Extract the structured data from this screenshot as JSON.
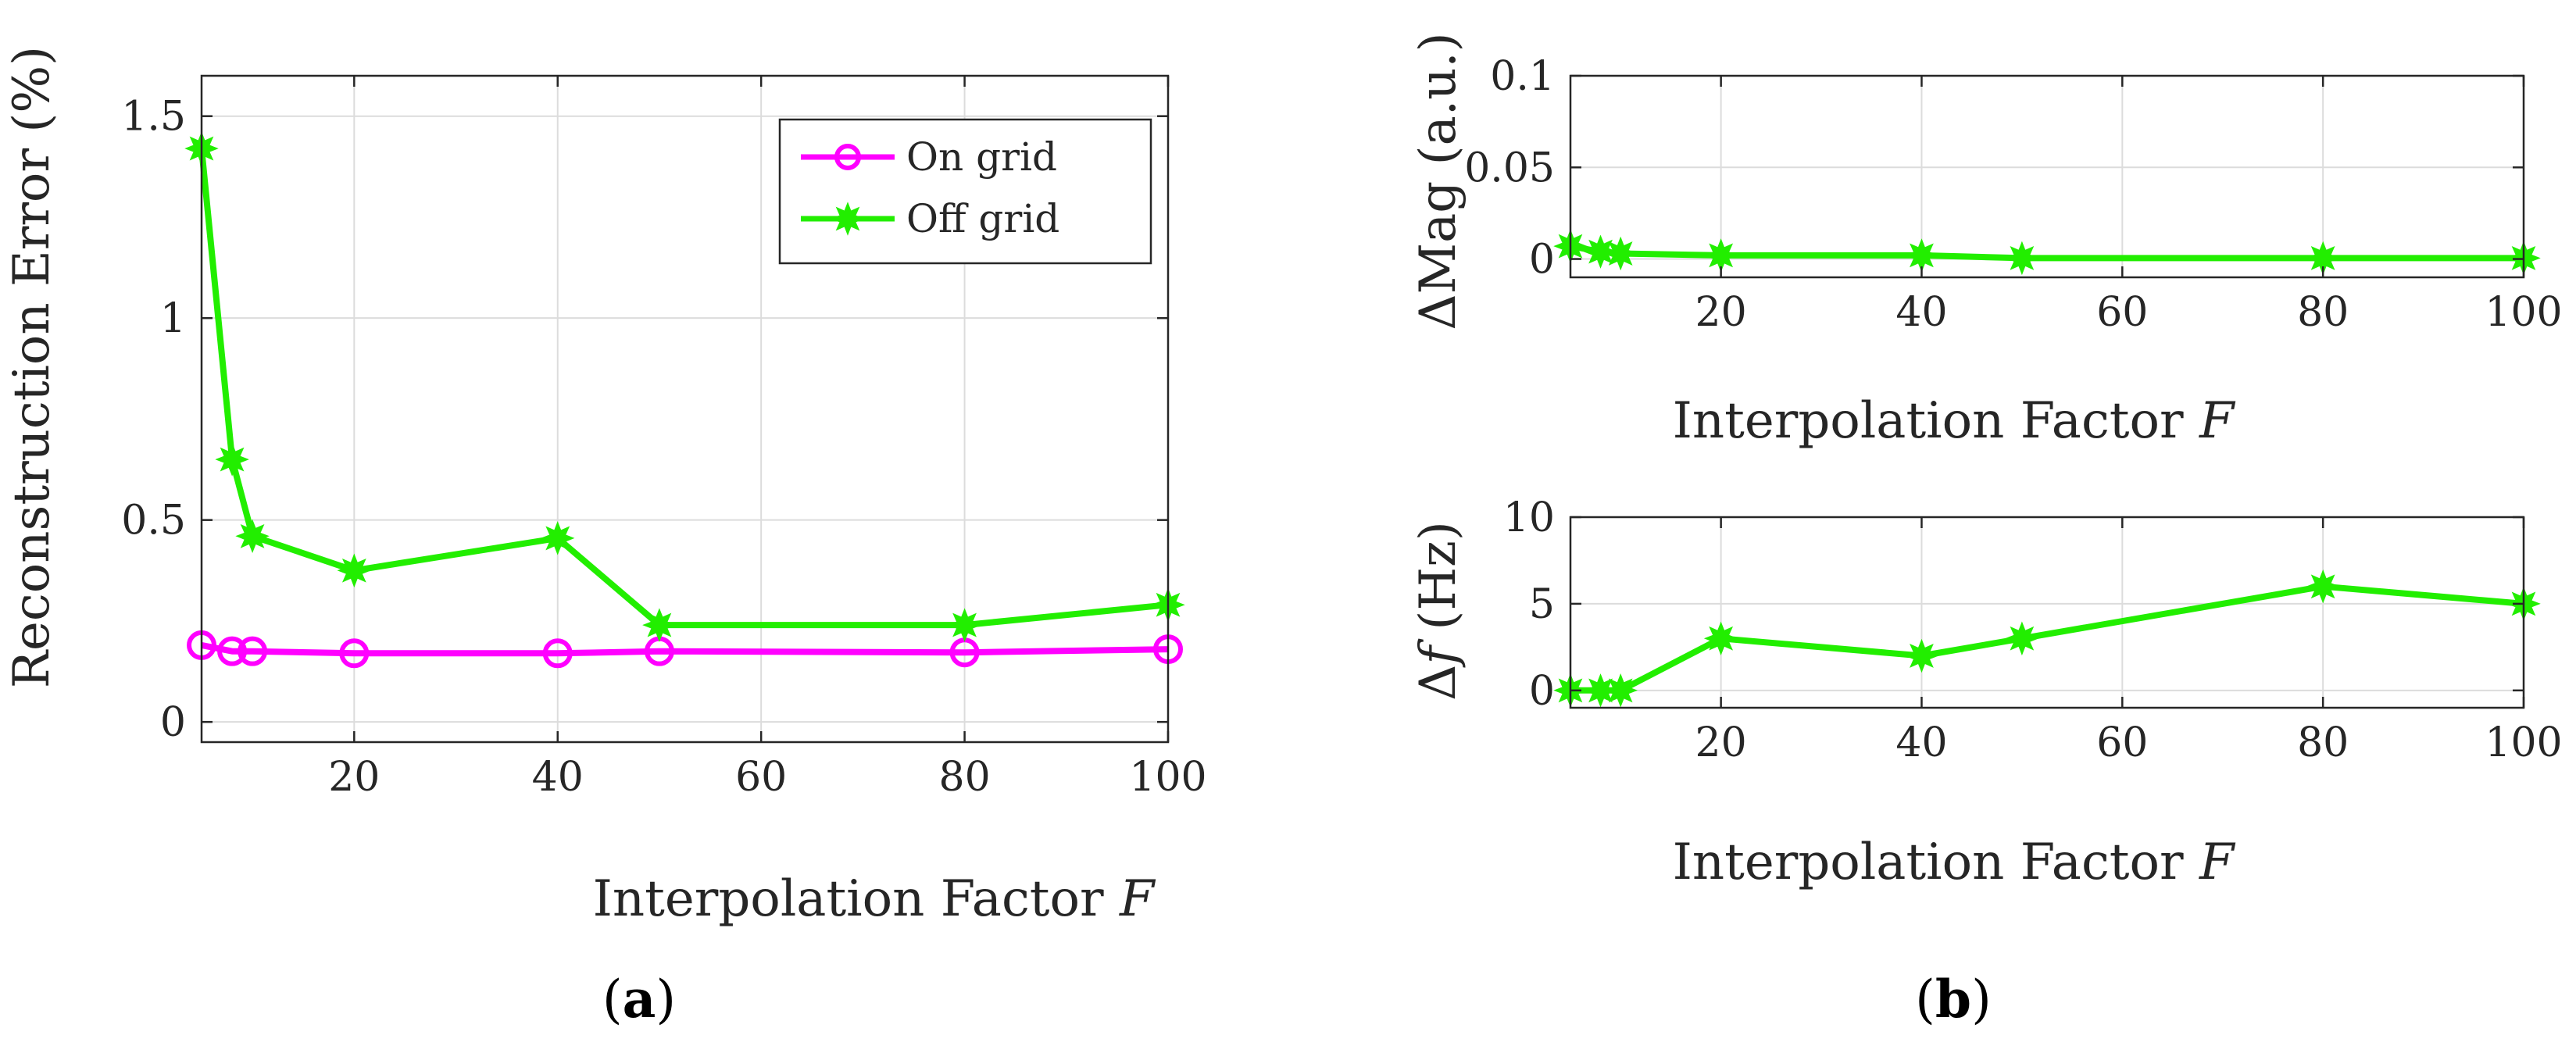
{
  "chart_data": [
    {
      "id": "a",
      "type": "line",
      "caption_letter": "a",
      "xlabel": "Interpolation Factor",
      "xlabel_var": "F",
      "ylabel": "Reconstruction Error (%)",
      "xlim": [
        5,
        100
      ],
      "ylim": [
        -0.05,
        1.6
      ],
      "xticks": [
        20,
        40,
        60,
        80,
        100
      ],
      "yticks": [
        0,
        0.5,
        1,
        1.5
      ],
      "ytick_labels": [
        "0",
        "0.5",
        "1",
        "1.5"
      ],
      "grid": true,
      "legend": "top-right",
      "series": [
        {
          "name": "On grid",
          "color": "#ff00ff",
          "marker": "circle",
          "x": [
            5,
            8,
            10,
            20,
            40,
            50,
            80,
            100
          ],
          "y": [
            0.19,
            0.175,
            0.175,
            0.17,
            0.17,
            0.175,
            0.172,
            0.18
          ]
        },
        {
          "name": "Off grid",
          "color": "#22ee00",
          "marker": "star",
          "x": [
            5,
            8,
            10,
            20,
            40,
            50,
            80,
            100
          ],
          "y": [
            1.42,
            0.65,
            0.46,
            0.375,
            0.455,
            0.24,
            0.24,
            0.29
          ]
        }
      ]
    },
    {
      "id": "b_top",
      "type": "line",
      "xlabel": "Interpolation Factor",
      "xlabel_var": "F",
      "ylabel_prefix": "ΔMag (a.u.)",
      "xlim": [
        5,
        100
      ],
      "ylim": [
        -0.01,
        0.1
      ],
      "xticks": [
        20,
        40,
        60,
        80,
        100
      ],
      "yticks": [
        0,
        0.05,
        0.1
      ],
      "ytick_labels": [
        "0",
        "0.05",
        "0.1"
      ],
      "grid": true,
      "series": [
        {
          "name": "Off grid",
          "color": "#22ee00",
          "marker": "star",
          "x": [
            5,
            8,
            10,
            20,
            40,
            50,
            80,
            100
          ],
          "y": [
            0.007,
            0.004,
            0.003,
            0.002,
            0.002,
            0.0005,
            0.0005,
            0.0005
          ]
        }
      ]
    },
    {
      "id": "b_bottom",
      "type": "line",
      "caption_letter": "b",
      "xlabel": "Interpolation Factor",
      "xlabel_var": "F",
      "ylabel_delta": "Δ",
      "ylabel_var": "f",
      "ylabel_unit": " (Hz)",
      "xlim": [
        5,
        100
      ],
      "ylim": [
        -1,
        10
      ],
      "xticks": [
        20,
        40,
        60,
        80,
        100
      ],
      "yticks": [
        0,
        5,
        10
      ],
      "ytick_labels": [
        "0",
        "5",
        "10"
      ],
      "grid": true,
      "series": [
        {
          "name": "Off grid",
          "color": "#22ee00",
          "marker": "star",
          "x": [
            5,
            8,
            10,
            20,
            40,
            50,
            80,
            100
          ],
          "y": [
            0,
            0,
            0,
            3,
            2,
            3,
            6,
            5
          ]
        }
      ]
    }
  ]
}
